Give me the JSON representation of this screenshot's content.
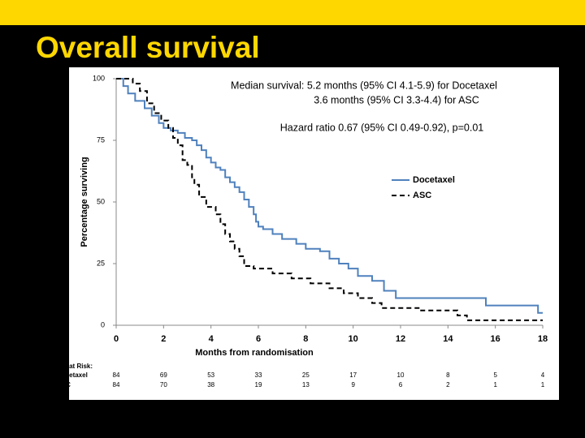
{
  "slide_title": "Overall survival",
  "chart_data": {
    "type": "step",
    "annotations": [
      "Median survival: 5.2 months (95% CI 4.1-5.9) for Docetaxel",
      "3.6 months (95% CI 3.3-4.4) for ASC",
      "Hazard ratio 0.67 (95% CI 0.49-0.92), p=0.01"
    ],
    "x_label": "Months from randomisation",
    "y_label": "Percentage surviving",
    "xlim": [
      0,
      18
    ],
    "xticks": [
      0,
      2,
      4,
      6,
      8,
      10,
      12,
      14,
      16,
      18
    ],
    "ylim": [
      0,
      100
    ],
    "yticks": [
      0,
      25,
      50,
      75,
      100
    ],
    "legend": "right",
    "series": [
      {
        "name": "Docetaxel",
        "color": "#4f81bd",
        "dash": false,
        "x": [
          0,
          0.3,
          0.5,
          0.8,
          1.2,
          1.5,
          1.8,
          2.0,
          2.3,
          2.6,
          2.9,
          3.2,
          3.4,
          3.6,
          3.8,
          4.0,
          4.2,
          4.4,
          4.6,
          4.8,
          5.0,
          5.2,
          5.4,
          5.6,
          5.8,
          5.9,
          6.0,
          6.2,
          6.6,
          7.0,
          7.6,
          8.0,
          8.6,
          9.0,
          9.4,
          9.8,
          10.2,
          10.8,
          11.3,
          11.8,
          15.6,
          17.8,
          18
        ],
        "values": [
          100,
          97,
          94,
          91,
          88,
          85,
          82,
          80,
          79,
          78,
          76,
          75,
          73,
          71,
          68,
          66,
          64,
          63,
          60,
          58,
          56,
          54,
          51,
          48,
          45,
          42,
          40,
          39,
          37,
          35,
          33,
          31,
          30,
          27,
          25,
          23,
          20,
          18,
          14,
          11,
          8,
          5,
          5
        ]
      },
      {
        "name": "ASC",
        "color": "#000000",
        "dash": true,
        "x": [
          0,
          0.7,
          1.0,
          1.3,
          1.6,
          1.9,
          2.2,
          2.4,
          2.6,
          2.8,
          3.0,
          3.2,
          3.3,
          3.5,
          3.8,
          4.2,
          4.4,
          4.6,
          4.8,
          5.0,
          5.2,
          5.4,
          5.8,
          6.6,
          7.4,
          8.2,
          9.0,
          9.6,
          10.2,
          10.8,
          11.2,
          12.8,
          14.4,
          14.8,
          18
        ],
        "values": [
          100,
          98,
          95,
          90,
          86,
          83,
          80,
          76,
          73,
          67,
          65,
          60,
          57,
          52,
          48,
          45,
          41,
          37,
          34,
          31,
          28,
          24,
          23,
          21,
          19,
          17,
          15,
          13,
          11,
          9,
          7,
          6,
          4,
          2,
          2
        ]
      }
    ],
    "risk_table": {
      "title": "No. at Risk:",
      "rows": [
        {
          "name": "Docetaxel",
          "values": [
            84,
            69,
            53,
            33,
            25,
            17,
            10,
            8,
            5,
            4
          ]
        },
        {
          "name": "ASC",
          "values": [
            84,
            70,
            38,
            19,
            13,
            9,
            6,
            2,
            1,
            1
          ]
        }
      ]
    }
  }
}
